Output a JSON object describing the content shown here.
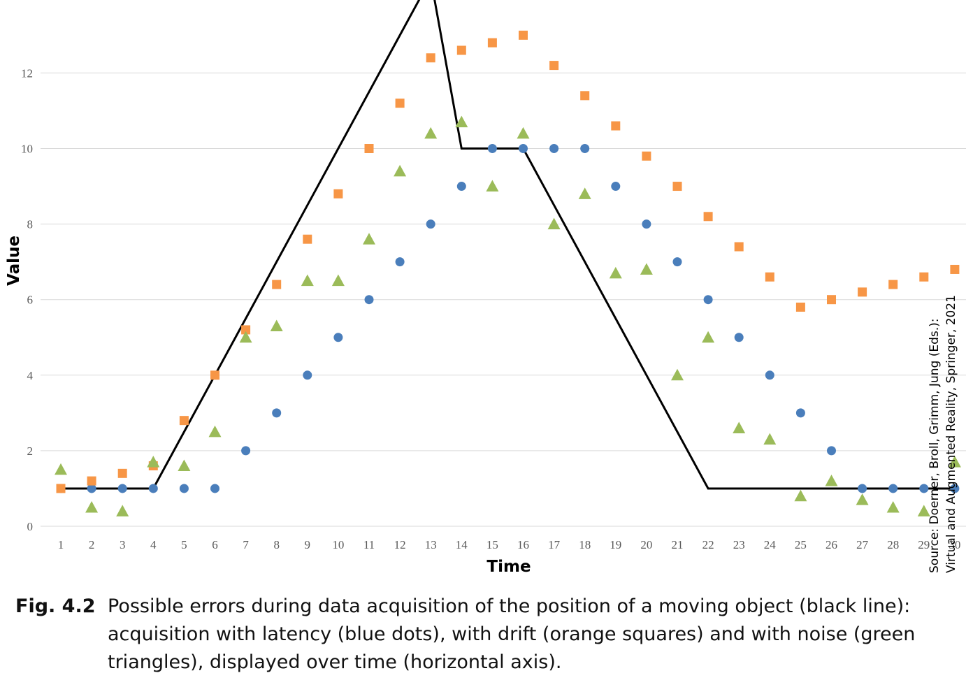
{
  "chart_data": {
    "type": "scatter",
    "xlabel": "Time",
    "ylabel": "Value",
    "x": [
      1,
      2,
      3,
      4,
      5,
      6,
      7,
      8,
      9,
      10,
      11,
      12,
      13,
      14,
      15,
      16,
      17,
      18,
      19,
      20,
      21,
      22,
      23,
      24,
      25,
      26,
      27,
      28,
      29,
      30
    ],
    "x_tick_labels": [
      "1",
      "2",
      "3",
      "4",
      "5",
      "6",
      "7",
      "8",
      "9",
      "10",
      "11",
      "12",
      "13",
      "14",
      "15",
      "16",
      "17",
      "18",
      "19",
      "20",
      "21",
      "22",
      "23",
      "24",
      "25",
      "26",
      "27",
      "28",
      "29",
      "30"
    ],
    "y_tick_labels": [
      "0",
      "2",
      "4",
      "6",
      "8",
      "10",
      "12"
    ],
    "xlim": [
      0.55,
      30.2
    ],
    "ylim": [
      0,
      13.5
    ],
    "grid": true,
    "series": [
      {
        "type": "line",
        "color": "#000000",
        "marker": "none",
        "values": [
          1,
          1,
          1,
          1,
          2.5,
          4,
          5.5,
          7,
          8.5,
          10,
          11.5,
          13,
          14.5,
          10,
          10,
          10,
          8.5,
          7,
          5.5,
          4,
          2.5,
          1,
          1,
          1,
          1,
          1,
          1,
          1,
          1,
          1
        ],
        "note": ""
      },
      {
        "type": "scatter",
        "color": "#4A7EBB",
        "marker": "circle",
        "values": [
          1,
          1,
          1,
          1,
          1,
          1,
          2,
          3,
          4,
          5,
          6,
          7,
          8,
          9,
          10,
          10,
          10,
          10,
          9,
          8,
          7,
          6,
          5,
          4,
          3,
          2,
          1,
          1,
          1,
          1
        ]
      },
      {
        "type": "scatter",
        "color": "#F79646",
        "marker": "square",
        "values": [
          1,
          1.2,
          1.4,
          1.6,
          2.8,
          4,
          5.2,
          6.4,
          7.6,
          8.8,
          10,
          11.2,
          12.4,
          12.6,
          12.8,
          13,
          12.2,
          11.4,
          10.6,
          9.8,
          9,
          8.2,
          7.4,
          6.6,
          5.8,
          6,
          6.2,
          6.4,
          6.6,
          6.8
        ]
      },
      {
        "type": "scatter",
        "color": "#9BBB59",
        "marker": "triangle",
        "values": [
          1.5,
          0.5,
          0.4,
          1.7,
          1.6,
          2.5,
          5,
          5.3,
          6.5,
          6.5,
          7.6,
          9.4,
          10.4,
          10.7,
          9,
          10.4,
          8,
          8.8,
          6.7,
          6.8,
          4,
          5,
          2.6,
          2.3,
          0.8,
          1.2,
          0.7,
          0.5,
          0.4,
          1.7
        ]
      }
    ]
  },
  "source": {
    "line1": "Source: Doerner, Broll, Grimm, Jung (Eds.):",
    "line2": "Virtual and Augmented Reality, Springer, 2021"
  },
  "caption": {
    "label": "Fig. 4.2",
    "text": "Possible errors during data acquisition of the position of a moving object (black line): acquisition with latency (blue dots), with drift (orange squares) and with noise (green triangles), displayed over time (horizontal axis)."
  }
}
